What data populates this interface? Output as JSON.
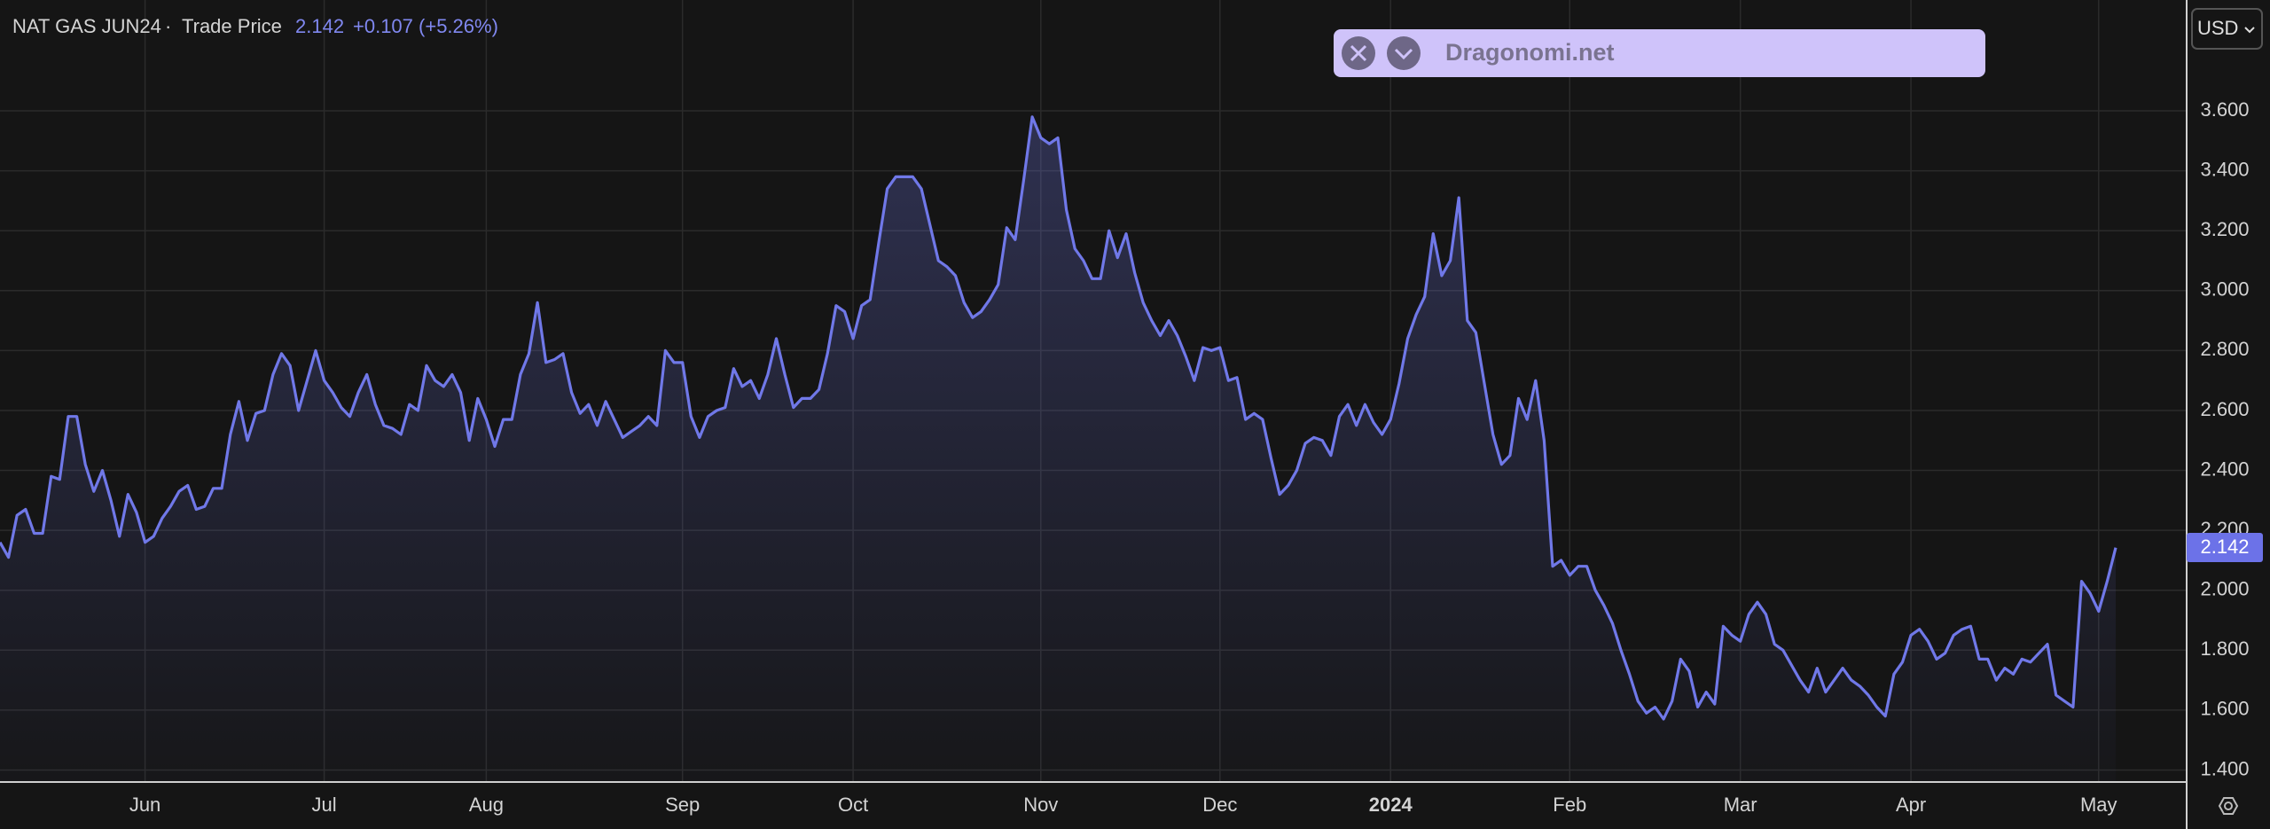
{
  "chart_data": {
    "type": "area",
    "title": "NAT GAS JUN24",
    "subtitle": "Trade Price",
    "change": "+0.107 (+5.26%)",
    "currency": "USD",
    "watermark": "Dragonomi.net",
    "color": "#7078e8",
    "grid": true,
    "ylim": [
      1.36,
      3.97
    ],
    "yticks": [
      {
        "value": 1.4,
        "label": "1.400"
      },
      {
        "value": 1.6,
        "label": "1.600"
      },
      {
        "value": 1.8,
        "label": "1.800"
      },
      {
        "value": 2.0,
        "label": "2.000"
      },
      {
        "value": 2.2,
        "label": "2.200"
      },
      {
        "value": 2.4,
        "label": "2.400"
      },
      {
        "value": 2.6,
        "label": "2.600"
      },
      {
        "value": 2.8,
        "label": "2.800"
      },
      {
        "value": 3.0,
        "label": "3.000"
      },
      {
        "value": 3.2,
        "label": "3.200"
      },
      {
        "value": 3.4,
        "label": "3.400"
      },
      {
        "value": 3.6,
        "label": "3.600"
      }
    ],
    "categories": [
      null,
      null,
      null,
      null,
      null,
      null,
      null,
      null,
      null,
      null,
      null,
      null,
      null,
      null,
      null,
      null,
      null,
      "Jun",
      null,
      null,
      null,
      null,
      null,
      null,
      null,
      null,
      null,
      null,
      null,
      null,
      null,
      null,
      null,
      null,
      null,
      null,
      null,
      null,
      "Jul",
      null,
      null,
      null,
      null,
      null,
      null,
      null,
      null,
      null,
      null,
      null,
      null,
      null,
      null,
      null,
      null,
      null,
      null,
      "Aug",
      null,
      null,
      null,
      null,
      null,
      null,
      null,
      null,
      null,
      null,
      null,
      null,
      null,
      null,
      null,
      null,
      null,
      null,
      null,
      null,
      null,
      null,
      "Sep",
      null,
      null,
      null,
      null,
      null,
      null,
      null,
      null,
      null,
      null,
      null,
      null,
      null,
      null,
      null,
      null,
      null,
      null,
      null,
      "Oct",
      null,
      null,
      null,
      null,
      null,
      null,
      null,
      null,
      null,
      null,
      null,
      null,
      null,
      null,
      null,
      null,
      null,
      null,
      null,
      null,
      null,
      "Nov",
      null,
      null,
      null,
      null,
      null,
      null,
      null,
      null,
      null,
      null,
      null,
      null,
      null,
      null,
      null,
      null,
      null,
      null,
      null,
      null,
      "Dec",
      null,
      null,
      null,
      null,
      null,
      null,
      null,
      null,
      null,
      null,
      null,
      null,
      null,
      null,
      null,
      null,
      null,
      null,
      null,
      "2024",
      null,
      null,
      null,
      null,
      null,
      null,
      null,
      null,
      null,
      null,
      null,
      null,
      null,
      null,
      null,
      null,
      null,
      null,
      null,
      null,
      "Feb",
      null,
      null,
      null,
      null,
      null,
      null,
      null,
      null,
      null,
      null,
      null,
      null,
      null,
      null,
      null,
      null,
      null,
      null,
      null,
      "Mar",
      null,
      null,
      null,
      null,
      null,
      null,
      null,
      null,
      null,
      null,
      null,
      null,
      null,
      null,
      null,
      null,
      null,
      null,
      null,
      "Apr",
      null,
      null,
      null,
      null,
      null,
      null,
      null,
      null,
      null,
      null,
      null,
      null,
      null,
      null,
      null,
      null,
      null,
      null,
      null,
      null,
      null,
      "May",
      null,
      null
    ],
    "values": [
      2.16,
      2.11,
      2.25,
      2.27,
      2.19,
      2.19,
      2.38,
      2.37,
      2.58,
      2.58,
      2.42,
      2.33,
      2.4,
      2.3,
      2.18,
      2.32,
      2.26,
      2.16,
      2.18,
      2.24,
      2.28,
      2.33,
      2.35,
      2.27,
      2.28,
      2.34,
      2.34,
      2.52,
      2.63,
      2.5,
      2.59,
      2.6,
      2.72,
      2.79,
      2.75,
      2.6,
      2.7,
      2.8,
      2.7,
      2.66,
      2.61,
      2.58,
      2.66,
      2.72,
      2.62,
      2.55,
      2.54,
      2.52,
      2.62,
      2.6,
      2.75,
      2.7,
      2.68,
      2.72,
      2.66,
      2.5,
      2.64,
      2.57,
      2.48,
      2.57,
      2.57,
      2.72,
      2.79,
      2.96,
      2.76,
      2.77,
      2.79,
      2.66,
      2.59,
      2.62,
      2.55,
      2.63,
      2.57,
      2.51,
      2.53,
      2.55,
      2.58,
      2.55,
      2.8,
      2.76,
      2.76,
      2.58,
      2.51,
      2.58,
      2.6,
      2.61,
      2.74,
      2.68,
      2.7,
      2.64,
      2.72,
      2.84,
      2.72,
      2.61,
      2.64,
      2.64,
      2.67,
      2.79,
      2.95,
      2.93,
      2.84,
      2.95,
      2.97,
      3.16,
      3.34,
      3.38,
      3.38,
      3.38,
      3.34,
      3.22,
      3.1,
      3.08,
      3.05,
      2.96,
      2.91,
      2.93,
      2.97,
      3.02,
      3.21,
      3.17,
      3.37,
      3.58,
      3.51,
      3.49,
      3.51,
      3.27,
      3.14,
      3.1,
      3.04,
      3.04,
      3.2,
      3.11,
      3.19,
      3.06,
      2.96,
      2.9,
      2.85,
      2.9,
      2.85,
      2.78,
      2.7,
      2.81,
      2.8,
      2.81,
      2.7,
      2.71,
      2.57,
      2.59,
      2.57,
      2.44,
      2.32,
      2.35,
      2.4,
      2.49,
      2.51,
      2.5,
      2.45,
      2.58,
      2.62,
      2.55,
      2.62,
      2.56,
      2.52,
      2.57,
      2.69,
      2.84,
      2.92,
      2.98,
      3.19,
      3.05,
      3.1,
      3.31,
      2.9,
      2.86,
      2.69,
      2.52,
      2.42,
      2.45,
      2.64,
      2.57,
      2.7,
      2.5,
      2.08,
      2.1,
      2.05,
      2.08,
      2.08,
      2.0,
      1.95,
      1.89,
      1.8,
      1.72,
      1.63,
      1.59,
      1.61,
      1.57,
      1.63,
      1.77,
      1.73,
      1.61,
      1.66,
      1.62,
      1.88,
      1.85,
      1.83,
      1.92,
      1.96,
      1.92,
      1.82,
      1.8,
      1.75,
      1.7,
      1.66,
      1.74,
      1.66,
      1.7,
      1.74,
      1.7,
      1.68,
      1.65,
      1.61,
      1.58,
      1.72,
      1.76,
      1.85,
      1.87,
      1.83,
      1.77,
      1.79,
      1.85,
      1.87,
      1.88,
      1.77,
      1.77,
      1.7,
      1.74,
      1.72,
      1.77,
      1.76,
      1.79,
      1.82,
      1.65,
      1.63,
      1.61,
      2.03,
      1.99,
      1.93,
      2.03,
      2.142
    ]
  }
}
